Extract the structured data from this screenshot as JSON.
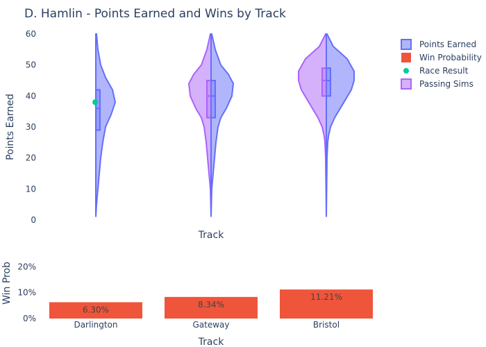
{
  "chart_data": [
    {
      "type": "violin",
      "title": "D. Hamlin - Points Earned and Wins by Track",
      "xlabel": "Track",
      "ylabel": "Points Earned",
      "ylim": [
        0,
        60
      ],
      "yticks": [
        0,
        10,
        20,
        30,
        40,
        50,
        60
      ],
      "categories": [
        "Darlington",
        "Gateway",
        "Bristol"
      ],
      "legend": [
        "Points Earned",
        "Win Probability",
        "Race Result",
        "Passing Sims"
      ],
      "legend_position": "top-right",
      "series": [
        {
          "name": "Points Earned",
          "side": "right",
          "color": "#636efa",
          "boxes": [
            {
              "q1": 29,
              "median": 36,
              "q3": 42,
              "min": 1,
              "max": 60
            },
            {
              "q1": 33,
              "median": 40,
              "q3": 45,
              "min": 1,
              "max": 60
            },
            {
              "q1": 40,
              "median": 45,
              "q3": 49,
              "min": 1,
              "max": 60
            }
          ]
        },
        {
          "name": "Passing Sims",
          "side": "left",
          "color": "#ab63fa",
          "boxes": [
            null,
            {
              "q1": 33,
              "median": 40,
              "q3": 45,
              "min": 1,
              "max": 60
            },
            {
              "q1": 40,
              "median": 45,
              "q3": 49,
              "min": 1,
              "max": 60
            }
          ]
        },
        {
          "name": "Race Result",
          "type": "scatter",
          "color": "#00cc96",
          "points": [
            {
              "category": "Darlington",
              "y": 38
            }
          ]
        }
      ]
    },
    {
      "type": "bar",
      "xlabel": "Track",
      "ylabel": "Win Prob",
      "ylim": [
        0,
        0.22
      ],
      "yticks": [
        "0%",
        "10%",
        "20%"
      ],
      "categories": [
        "Darlington",
        "Gateway",
        "Bristol"
      ],
      "series": [
        {
          "name": "Win Probability",
          "color": "#ef553b",
          "values": [
            0.063,
            0.0834,
            0.1121
          ],
          "labels": [
            "6.30%",
            "8.34%",
            "11.21%"
          ]
        }
      ]
    }
  ]
}
